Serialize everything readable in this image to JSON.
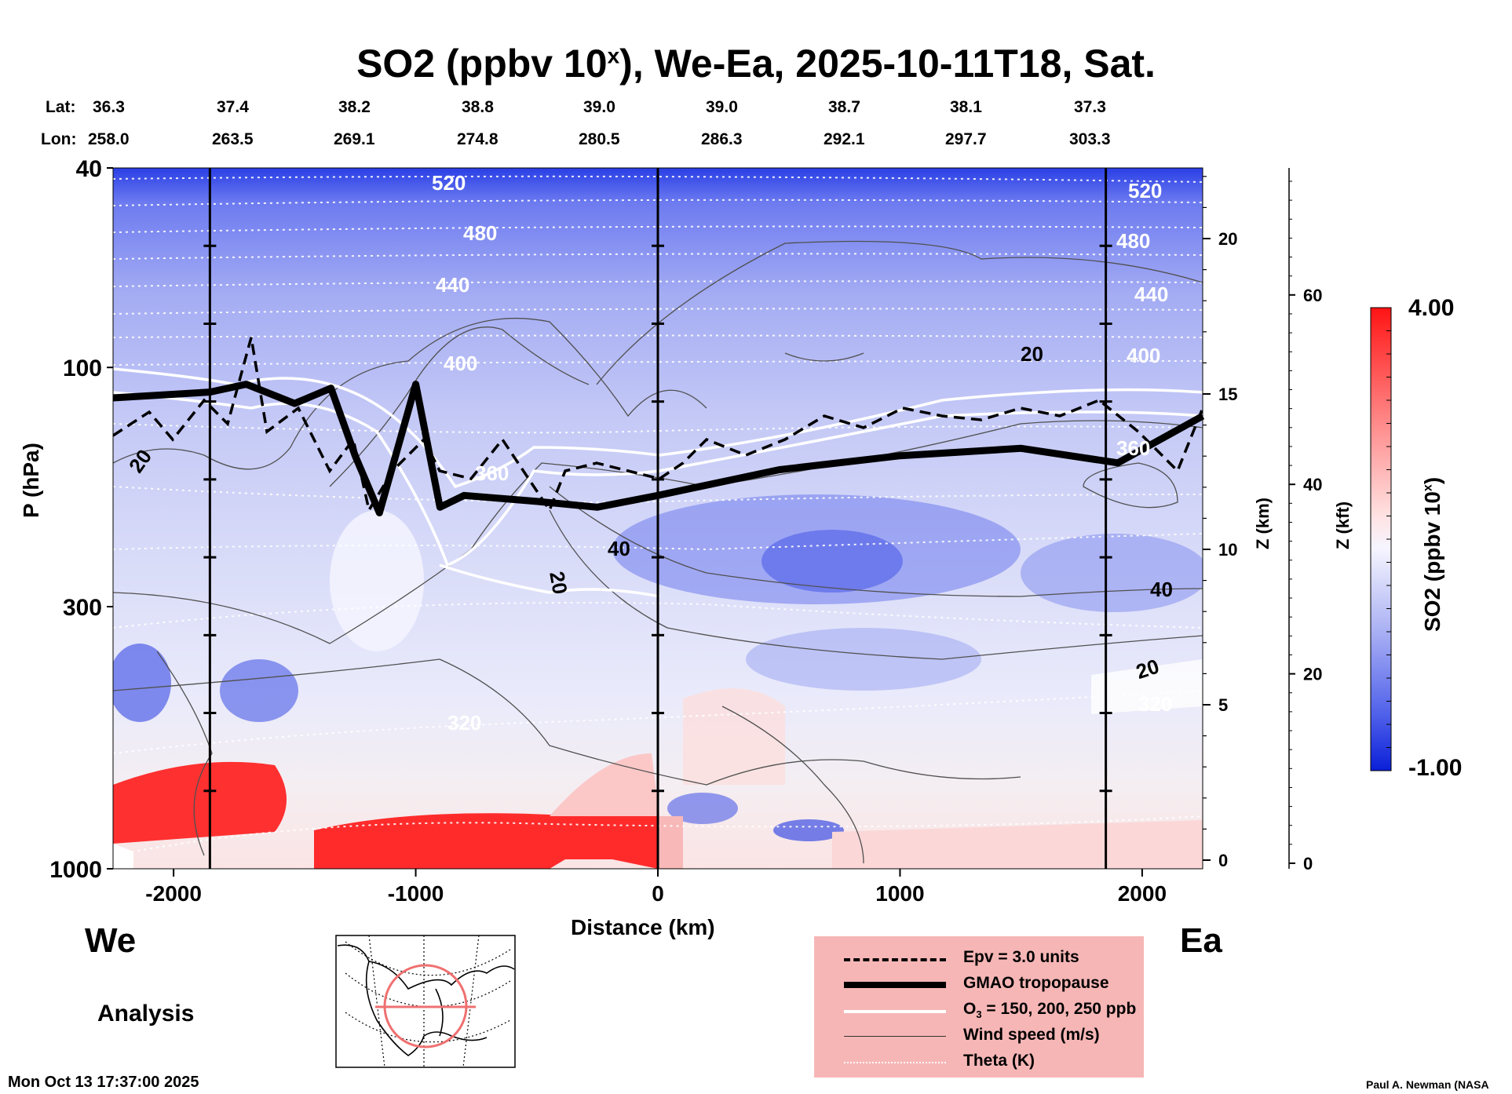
{
  "title": {
    "main": "SO2 (ppbv 10",
    "sup": "x",
    "rest": "), We-Ea, 2025-10-11T18, Sat."
  },
  "lat_label": "Lat:",
  "lon_label": "Lon:",
  "lat_values": [
    "36.3",
    "37.4",
    "38.2",
    "38.8",
    "39.0",
    "39.0",
    "38.7",
    "38.1",
    "37.3"
  ],
  "lon_values": [
    "258.0",
    "263.5",
    "269.1",
    "274.8",
    "280.5",
    "286.3",
    "292.1",
    "297.7",
    "303.3"
  ],
  "left_end": "We",
  "right_end": "Ea",
  "analysis_label": "Analysis",
  "timestamp": "Mon Oct 13 17:37:00 2025",
  "credit": "Paul A. Newman (NASA",
  "colorbar": {
    "max_label": "4.00",
    "min_label": "-1.00",
    "title_main": "SO2 (ppbv 10",
    "title_sup": "x",
    "title_end": ")"
  },
  "legend": [
    {
      "label": "Epv = 3.0 units",
      "style": "dashed"
    },
    {
      "label": "GMAO tropopause",
      "style": "thick"
    },
    {
      "label": "O",
      "sub": "3",
      "rest": " = 150, 200, 250 ppb",
      "style": "white"
    },
    {
      "label": "Wind speed (m/s)",
      "style": "thin"
    },
    {
      "label": "Theta (K)",
      "style": "dotted"
    }
  ],
  "colors": {
    "low": "#1d2fe0",
    "mid": "#ecebff",
    "high": "#ff2020",
    "legend_bg": "#f7b6b6"
  },
  "chart_data": {
    "type": "heatmap",
    "title": "SO2 (ppbv 10^x), We-Ea, 2025-10-11T18, Sat.",
    "xlabel": "Distance (km)",
    "ylabel": "P (hPa)",
    "xlim": [
      -2250,
      2250
    ],
    "ylim_hpa": [
      1000,
      40
    ],
    "x_ticks": [
      "-2000",
      "-1000",
      "0",
      "1000",
      "2000"
    ],
    "x_tick_values": [
      -2000,
      -1000,
      0,
      1000,
      2000
    ],
    "y_ticks": [
      "40",
      "100",
      "300",
      "1000"
    ],
    "y_tick_values": [
      40,
      100,
      300,
      1000
    ],
    "z_km_label": "Z (km)",
    "z_km_ticks": [
      "0",
      "5",
      "10",
      "15",
      "20"
    ],
    "z_kft_label": "Z (kft)",
    "z_kft_ticks": [
      "0",
      "20",
      "40",
      "60"
    ],
    "vertical_markers_km": [
      -1850,
      0,
      1850
    ],
    "colorbar_range": [
      -1.0,
      4.0
    ],
    "theta_labels": [
      "520",
      "480",
      "440",
      "400",
      "360",
      "320",
      "520",
      "480",
      "440",
      "400",
      "360",
      "320"
    ],
    "wind_labels": [
      "20",
      "40",
      "20",
      "20",
      "40",
      "20"
    ],
    "tropopause_approx_hpa": [
      {
        "x": -2250,
        "p": 115
      },
      {
        "x": -1850,
        "p": 112
      },
      {
        "x": -1700,
        "p": 108
      },
      {
        "x": -1500,
        "p": 118
      },
      {
        "x": -1350,
        "p": 110
      },
      {
        "x": -1250,
        "p": 150
      },
      {
        "x": -1150,
        "p": 195
      },
      {
        "x": -1000,
        "p": 108
      },
      {
        "x": -900,
        "p": 190
      },
      {
        "x": -800,
        "p": 180
      },
      {
        "x": -500,
        "p": 185
      },
      {
        "x": -250,
        "p": 190
      },
      {
        "x": 0,
        "p": 180
      },
      {
        "x": 500,
        "p": 160
      },
      {
        "x": 1000,
        "p": 150
      },
      {
        "x": 1500,
        "p": 145
      },
      {
        "x": 1900,
        "p": 155
      },
      {
        "x": 2250,
        "p": 125
      }
    ]
  }
}
